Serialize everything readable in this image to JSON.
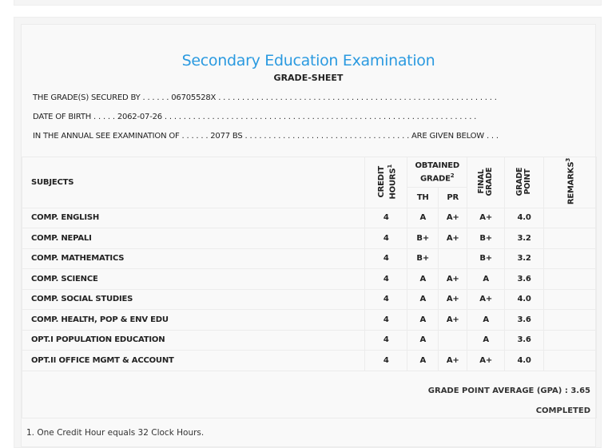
{
  "title": "Secondary Education Examination",
  "subtitle": "GRADE-SHEET",
  "info": {
    "line1": "THE GRADE(S) SECURED BY . . . . . . 06705528X . . . . . . . . . . . . . . . . . . . . . . . . . . . . . . . . . . . . . . . . . . . . . . . . . . . . . . . . . . .",
    "line2": "DATE OF BIRTH . . . . . 2062-07-26 . . . . . . . . . . . . . . . . . . . . . . . . . . . . . . . . . . . . . . . . . . . . . . . . . . . . . . . . . . . . . . . . . .",
    "line3": "IN THE ANNUAL SEE EXAMINATION OF . . . . . . 2077 BS . . . . . . . . . . . . . . . . . . . . . . . . . . . . . . . . . . . ARE GIVEN BELOW . . ."
  },
  "headers": {
    "subjects": "SUBJECTS",
    "credit": "CREDIT HOURS",
    "credit_sup": "1",
    "obtained": "OBTAINED GRADE",
    "obtained_sup": "2",
    "th": "TH",
    "pr": "PR",
    "final": "FINAL GRADE",
    "point": "GRADE POINT",
    "remarks": "REMARKS",
    "remarks_sup": "3"
  },
  "rows": [
    {
      "subject": "COMP. ENGLISH",
      "credit": "4",
      "th": "A",
      "pr": "A+",
      "final": "A+",
      "point": "4.0"
    },
    {
      "subject": "COMP. NEPALI",
      "credit": "4",
      "th": "B+",
      "pr": "A+",
      "final": "B+",
      "point": "3.2"
    },
    {
      "subject": "COMP. MATHEMATICS",
      "credit": "4",
      "th": "B+",
      "pr": "",
      "final": "B+",
      "point": "3.2"
    },
    {
      "subject": "COMP. SCIENCE",
      "credit": "4",
      "th": "A",
      "pr": "A+",
      "final": "A",
      "point": "3.6"
    },
    {
      "subject": "COMP. SOCIAL STUDIES",
      "credit": "4",
      "th": "A",
      "pr": "A+",
      "final": "A+",
      "point": "4.0"
    },
    {
      "subject": "COMP. HEALTH, POP & ENV EDU",
      "credit": "4",
      "th": "A",
      "pr": "A+",
      "final": "A",
      "point": "3.6"
    },
    {
      "subject": "OPT.I POPULATION EDUCATION",
      "credit": "4",
      "th": "A",
      "pr": "",
      "final": "A",
      "point": "3.6"
    },
    {
      "subject": "OPT.II OFFICE MGMT & ACCOUNT",
      "credit": "4",
      "th": "A",
      "pr": "A+",
      "final": "A+",
      "point": "4.0"
    }
  ],
  "gpa": "GRADE POINT AVERAGE (GPA) : 3.65",
  "status": "COMPLETED",
  "footnote1": "1. One Credit Hour equals 32 Clock Hours."
}
